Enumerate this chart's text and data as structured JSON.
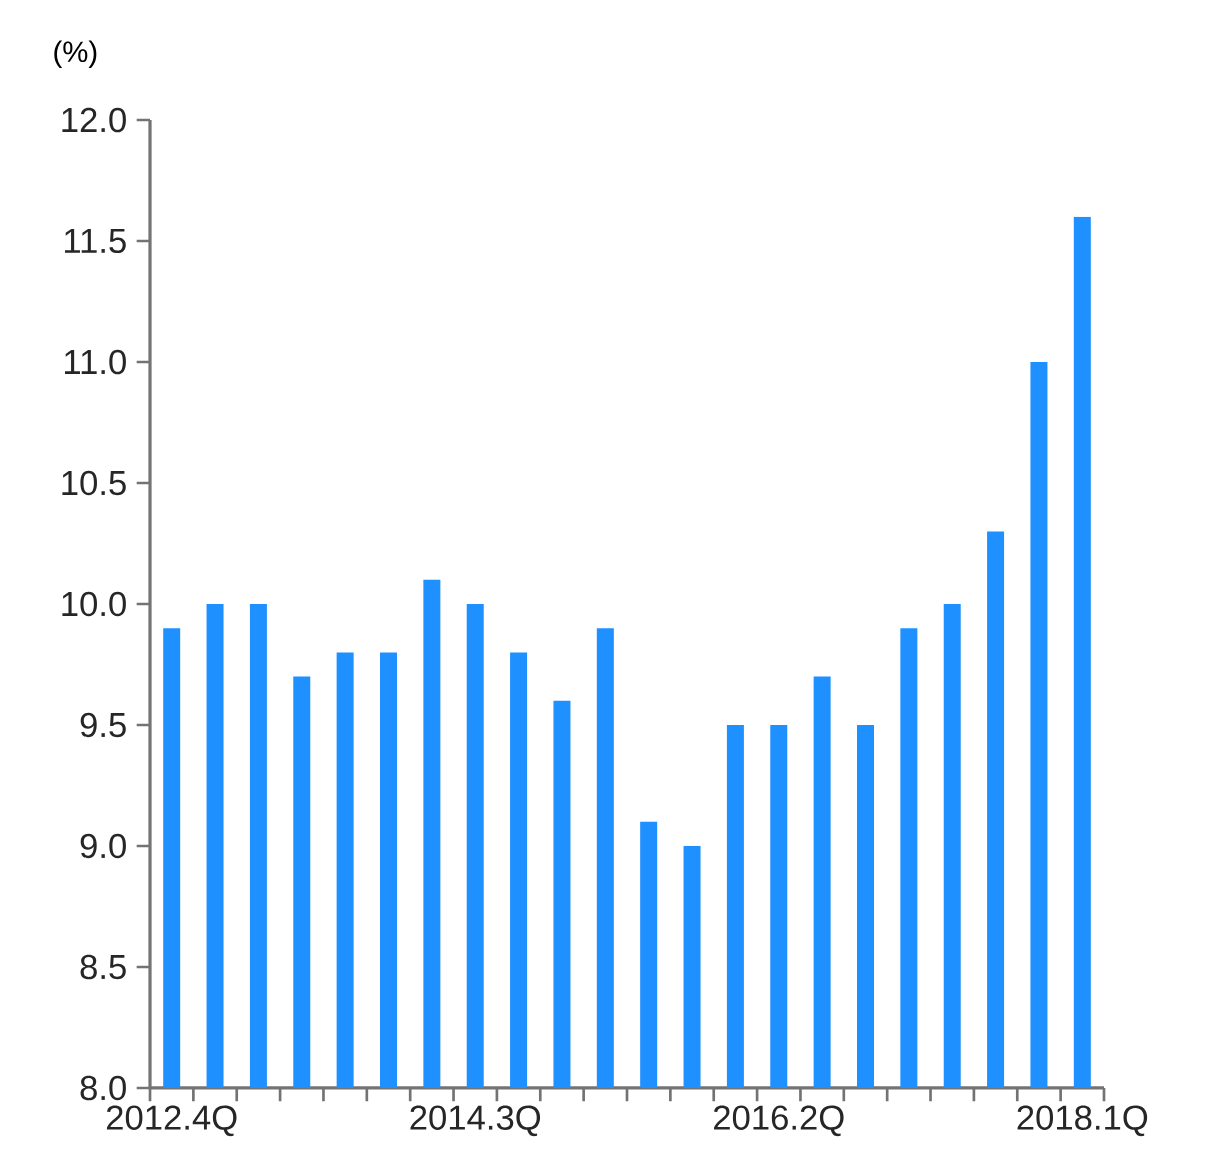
{
  "chart_data": {
    "type": "bar",
    "ylabel": "(%)",
    "categories": [
      "2012.4Q",
      null,
      null,
      null,
      null,
      null,
      null,
      "2014.3Q",
      null,
      null,
      null,
      null,
      null,
      null,
      "2016.2Q",
      null,
      null,
      null,
      null,
      null,
      null,
      "2018.1Q"
    ],
    "values": [
      9.9,
      10.0,
      10.0,
      9.7,
      9.8,
      9.8,
      10.1,
      10.0,
      9.8,
      9.6,
      9.9,
      9.1,
      9.0,
      9.5,
      9.5,
      9.7,
      9.5,
      9.9,
      10.0,
      10.3,
      11.0,
      11.6
    ],
    "color": "#1e90ff",
    "ylim": [
      8.0,
      12.0
    ],
    "yticks": [
      {
        "value": 8,
        "label": "8.0"
      },
      {
        "value": 8.5,
        "label": "8.5"
      },
      {
        "value": 9,
        "label": "9.0"
      },
      {
        "value": 9.5,
        "label": "9.5"
      },
      {
        "value": 10,
        "label": "10.0"
      },
      {
        "value": 10.5,
        "label": "10.5"
      },
      {
        "value": 11,
        "label": "11.0"
      },
      {
        "value": 11.5,
        "label": "11.5"
      },
      {
        "value": 12,
        "label": "12.0"
      }
    ],
    "grid": false
  }
}
